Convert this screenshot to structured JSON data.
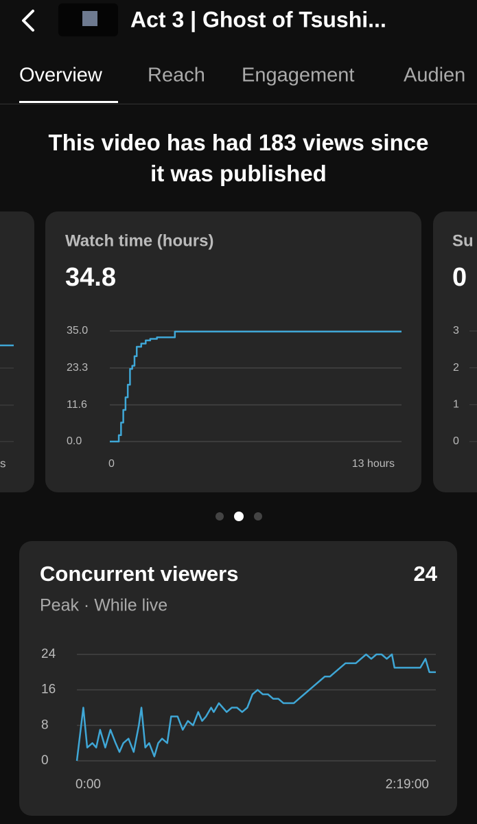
{
  "header": {
    "title": "Act 3 | Ghost of Tsushi..."
  },
  "tabs": [
    "Overview",
    "Reach",
    "Engagement",
    "Audien"
  ],
  "summary": "This video has had 183 views since it was published",
  "left_card": {
    "x_label": "s"
  },
  "chart_data": [
    {
      "type": "line",
      "title": "Watch time (hours)",
      "value": 34.8,
      "color": "#3fa7d6",
      "step": true,
      "x": [
        0,
        0.3,
        0.4,
        0.5,
        0.6,
        0.7,
        0.8,
        0.9,
        1.0,
        1.1,
        1.2,
        1.4,
        1.6,
        1.8,
        2.1,
        2.9,
        13
      ],
      "values": [
        0,
        0,
        2,
        6,
        10,
        14,
        18,
        23,
        24,
        27,
        30,
        31,
        32,
        32.5,
        33,
        34.8,
        34.8
      ],
      "xlim": [
        0,
        13
      ],
      "xticks": [
        0,
        {
          "value": 13,
          "label": "13 hours"
        }
      ],
      "ylim": [
        0,
        35
      ],
      "yticks": [
        {
          "value": 0,
          "label": "0.0"
        },
        11.6,
        23.3,
        {
          "value": 35,
          "label": "35.0"
        }
      ],
      "grid": true
    },
    {
      "type": "line",
      "title": "Concurrent viewers",
      "value": 24,
      "subtitle": "Peak · While live",
      "color": "#3fa7d6",
      "step": false,
      "x": [
        0,
        2.5,
        4,
        6,
        7.5,
        9,
        11,
        13,
        15,
        16.5,
        18,
        20,
        22,
        24,
        25,
        26.5,
        28,
        30,
        31.5,
        33,
        35,
        36.5,
        39,
        41,
        43,
        45,
        47,
        48.5,
        50,
        52,
        53,
        55,
        56.5,
        58,
        60,
        62,
        64,
        66,
        68,
        70,
        72,
        74,
        76,
        78,
        80,
        84,
        86,
        88,
        90,
        92,
        94,
        96,
        98,
        100,
        104,
        108,
        110,
        112,
        114,
        116,
        118,
        120,
        122,
        123,
        128,
        133,
        135,
        136.5,
        139
      ],
      "values": [
        0,
        12,
        3,
        4,
        3,
        7,
        3,
        7,
        4,
        2,
        4,
        5,
        2,
        8,
        12,
        3,
        4,
        1,
        4,
        5,
        4,
        10,
        10,
        7,
        9,
        8,
        11,
        9,
        10,
        12,
        11,
        13,
        12,
        11,
        12,
        12,
        11,
        12,
        15,
        16,
        15,
        15,
        14,
        14,
        13,
        13,
        14,
        15,
        16,
        17,
        18,
        19,
        19,
        20,
        22,
        22,
        23,
        24,
        23,
        24,
        24,
        23,
        24,
        21,
        21,
        21,
        23,
        20,
        20
      ],
      "xlim": [
        0,
        139
      ],
      "xticks": [
        {
          "value": 0,
          "label": "0:00"
        },
        {
          "value": 139,
          "label": "2:19:00"
        }
      ],
      "ylim": [
        0,
        24
      ],
      "yticks": [
        0,
        8,
        16,
        24
      ],
      "grid": true
    }
  ],
  "right_card": {
    "title": "Su",
    "value": 0,
    "ylim": [
      0,
      3
    ],
    "yticks": [
      0,
      1,
      2,
      3
    ]
  }
}
